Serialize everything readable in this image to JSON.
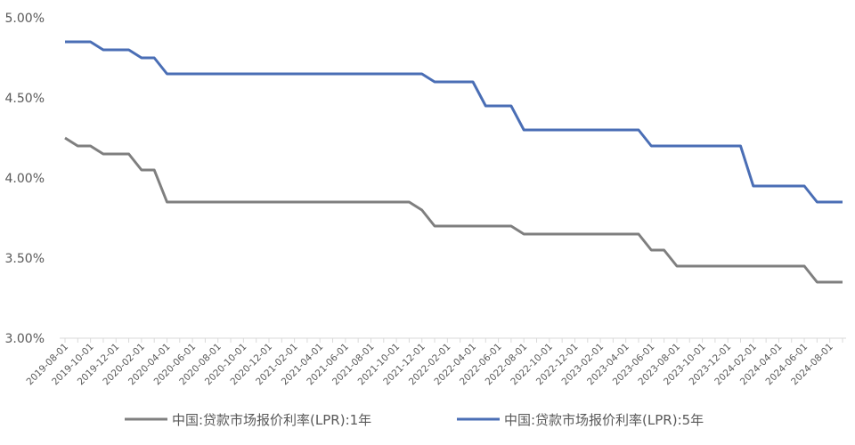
{
  "chart_data": {
    "type": "line",
    "x": [
      "2019-08-01",
      "2019-09-01",
      "2019-10-01",
      "2019-11-01",
      "2019-12-01",
      "2020-01-01",
      "2020-02-01",
      "2020-03-01",
      "2020-04-01",
      "2020-05-01",
      "2020-06-01",
      "2020-07-01",
      "2020-08-01",
      "2020-09-01",
      "2020-10-01",
      "2020-11-01",
      "2020-12-01",
      "2021-01-01",
      "2021-02-01",
      "2021-03-01",
      "2021-04-01",
      "2021-05-01",
      "2021-06-01",
      "2021-07-01",
      "2021-08-01",
      "2021-09-01",
      "2021-10-01",
      "2021-11-01",
      "2021-12-01",
      "2022-01-01",
      "2022-02-01",
      "2022-03-01",
      "2022-04-01",
      "2022-05-01",
      "2022-06-01",
      "2022-07-01",
      "2022-08-01",
      "2022-09-01",
      "2022-10-01",
      "2022-11-01",
      "2022-12-01",
      "2023-01-01",
      "2023-02-01",
      "2023-03-01",
      "2023-04-01",
      "2023-05-01",
      "2023-06-01",
      "2023-07-01",
      "2023-08-01",
      "2023-09-01",
      "2023-10-01",
      "2023-11-01",
      "2023-12-01",
      "2024-01-01",
      "2024-02-01",
      "2024-03-01",
      "2024-04-01",
      "2024-05-01",
      "2024-06-01",
      "2024-07-01",
      "2024-08-01",
      "2024-09-01"
    ],
    "x_tick_labels": [
      "2019-08-01",
      "2019-10-01",
      "2019-12-01",
      "2020-02-01",
      "2020-04-01",
      "2020-06-01",
      "2020-08-01",
      "2020-10-01",
      "2020-12-01",
      "2021-02-01",
      "2021-04-01",
      "2021-06-01",
      "2021-08-01",
      "2021-10-01",
      "2021-12-01",
      "2022-02-01",
      "2022-04-01",
      "2022-06-01",
      "2022-08-01",
      "2022-10-01",
      "2022-12-01",
      "2023-02-01",
      "2023-04-01",
      "2023-06-01",
      "2023-08-01",
      "2023-10-01",
      "2023-12-01",
      "2024-02-01",
      "2024-04-01",
      "2024-06-01",
      "2024-08-01"
    ],
    "series": [
      {
        "name": "中国:贷款市场报价利率(LPR):1年",
        "color": "#7f7f7f",
        "values": [
          4.25,
          4.2,
          4.2,
          4.15,
          4.15,
          4.15,
          4.05,
          4.05,
          3.85,
          3.85,
          3.85,
          3.85,
          3.85,
          3.85,
          3.85,
          3.85,
          3.85,
          3.85,
          3.85,
          3.85,
          3.85,
          3.85,
          3.85,
          3.85,
          3.85,
          3.85,
          3.85,
          3.85,
          3.8,
          3.7,
          3.7,
          3.7,
          3.7,
          3.7,
          3.7,
          3.7,
          3.65,
          3.65,
          3.65,
          3.65,
          3.65,
          3.65,
          3.65,
          3.65,
          3.65,
          3.65,
          3.55,
          3.55,
          3.45,
          3.45,
          3.45,
          3.45,
          3.45,
          3.45,
          3.45,
          3.45,
          3.45,
          3.45,
          3.45,
          3.35,
          3.35,
          3.35
        ]
      },
      {
        "name": "中国:贷款市场报价利率(LPR):5年",
        "color": "#4a6eb5",
        "values": [
          4.85,
          4.85,
          4.85,
          4.8,
          4.8,
          4.8,
          4.75,
          4.75,
          4.65,
          4.65,
          4.65,
          4.65,
          4.65,
          4.65,
          4.65,
          4.65,
          4.65,
          4.65,
          4.65,
          4.65,
          4.65,
          4.65,
          4.65,
          4.65,
          4.65,
          4.65,
          4.65,
          4.65,
          4.65,
          4.6,
          4.6,
          4.6,
          4.6,
          4.45,
          4.45,
          4.45,
          4.3,
          4.3,
          4.3,
          4.3,
          4.3,
          4.3,
          4.3,
          4.3,
          4.3,
          4.3,
          4.2,
          4.2,
          4.2,
          4.2,
          4.2,
          4.2,
          4.2,
          4.2,
          3.95,
          3.95,
          3.95,
          3.95,
          3.95,
          3.85,
          3.85,
          3.85
        ]
      }
    ],
    "y_ticks": [
      "3.00%",
      "3.50%",
      "4.00%",
      "4.50%",
      "5.00%"
    ],
    "ylim": [
      3.0,
      5.0
    ],
    "y_unit": "%",
    "grid": false,
    "legend_position": "bottom",
    "title": "",
    "xlabel": "",
    "ylabel": ""
  }
}
